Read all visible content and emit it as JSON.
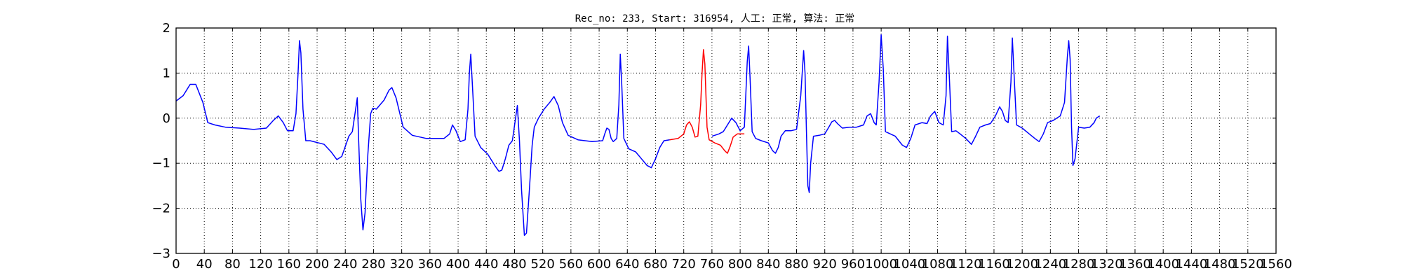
{
  "chart_data": {
    "type": "line",
    "title": "Rec_no: 233, Start: 316954, 人工: 正常, 算法: 正常",
    "xlabel": "",
    "ylabel": "",
    "xlim": [
      0,
      1560
    ],
    "ylim": [
      -3,
      2
    ],
    "grid": true,
    "y_ticks": [
      2,
      1,
      0,
      -1,
      -2,
      -3
    ],
    "y_tick_labels": [
      "2",
      "1",
      "0",
      "−1",
      "−2",
      "−3"
    ],
    "x_ticks": [
      0,
      40,
      80,
      120,
      160,
      200,
      240,
      280,
      320,
      360,
      400,
      440,
      480,
      520,
      560,
      600,
      640,
      680,
      720,
      760,
      800,
      840,
      880,
      920,
      960,
      1000,
      1040,
      1080,
      1120,
      1160,
      1200,
      1240,
      1280,
      1320,
      1360,
      1400,
      1440,
      1480,
      1520,
      1560
    ],
    "x_tick_labels": [
      "0",
      "40",
      "80",
      "120",
      "160",
      "200",
      "240",
      "280",
      "320",
      "360",
      "400",
      "440",
      "480",
      "520",
      "560",
      "600",
      "640",
      "680",
      "720",
      "760",
      "800",
      "840",
      "880",
      "920",
      "960",
      "1000",
      "1040",
      "1080",
      "1120",
      "1160",
      "1200",
      "1240",
      "1280",
      "1320",
      "1360",
      "1400",
      "1440",
      "1480",
      "1520",
      "1560"
    ],
    "series": [
      {
        "color": "#0000ff",
        "segments": [
          [
            [
              0,
              0.38
            ],
            [
              10,
              0.5
            ],
            [
              20,
              0.75
            ],
            [
              28,
              0.75
            ],
            [
              38,
              0.35
            ],
            [
              45,
              -0.1
            ],
            [
              55,
              -0.15
            ],
            [
              70,
              -0.2
            ],
            [
              90,
              -0.22
            ],
            [
              110,
              -0.25
            ],
            [
              128,
              -0.22
            ],
            [
              138,
              -0.05
            ],
            [
              145,
              0.05
            ],
            [
              152,
              -0.1
            ],
            [
              158,
              -0.28
            ],
            [
              166,
              -0.28
            ],
            [
              170,
              0.1
            ],
            [
              173,
              1.0
            ],
            [
              175,
              1.72
            ],
            [
              177,
              1.45
            ],
            [
              180,
              0.2
            ],
            [
              184,
              -0.5
            ],
            [
              190,
              -0.5
            ],
            [
              210,
              -0.58
            ],
            [
              220,
              -0.75
            ],
            [
              228,
              -0.92
            ],
            [
              235,
              -0.85
            ],
            [
              245,
              -0.4
            ],
            [
              250,
              -0.3
            ],
            [
              257,
              0.45
            ],
            [
              259,
              -0.5
            ],
            [
              262,
              -1.8
            ],
            [
              265,
              -2.48
            ],
            [
              268,
              -2.1
            ],
            [
              272,
              -0.8
            ],
            [
              276,
              0.1
            ],
            [
              279,
              0.22
            ],
            [
              284,
              0.2
            ],
            [
              295,
              0.4
            ],
            [
              302,
              0.62
            ],
            [
              306,
              0.68
            ],
            [
              312,
              0.45
            ],
            [
              322,
              -0.2
            ],
            [
              335,
              -0.38
            ],
            [
              355,
              -0.45
            ],
            [
              380,
              -0.45
            ],
            [
              388,
              -0.35
            ],
            [
              392,
              -0.15
            ],
            [
              397,
              -0.28
            ],
            [
              403,
              -0.52
            ],
            [
              410,
              -0.48
            ],
            [
              414,
              0.2
            ],
            [
              416,
              1.0
            ],
            [
              418,
              1.42
            ],
            [
              420,
              0.8
            ],
            [
              424,
              -0.4
            ],
            [
              432,
              -0.65
            ],
            [
              442,
              -0.8
            ],
            [
              452,
              -1.05
            ],
            [
              458,
              -1.18
            ],
            [
              462,
              -1.15
            ],
            [
              467,
              -0.9
            ],
            [
              472,
              -0.6
            ],
            [
              477,
              -0.5
            ],
            [
              481,
              -0.05
            ],
            [
              484,
              0.28
            ],
            [
              487,
              -0.5
            ],
            [
              490,
              -1.6
            ],
            [
              494,
              -2.6
            ],
            [
              497,
              -2.55
            ],
            [
              501,
              -1.6
            ],
            [
              505,
              -0.6
            ],
            [
              508,
              -0.2
            ],
            [
              514,
              0.0
            ],
            [
              522,
              0.2
            ],
            [
              530,
              0.35
            ],
            [
              536,
              0.48
            ],
            [
              542,
              0.28
            ],
            [
              548,
              -0.1
            ],
            [
              556,
              -0.38
            ],
            [
              570,
              -0.48
            ],
            [
              590,
              -0.52
            ],
            [
              605,
              -0.5
            ],
            [
              608,
              -0.35
            ],
            [
              611,
              -0.22
            ],
            [
              614,
              -0.25
            ],
            [
              617,
              -0.45
            ],
            [
              620,
              -0.52
            ],
            [
              625,
              -0.45
            ],
            [
              628,
              0.3
            ],
            [
              630,
              1.42
            ],
            [
              632,
              0.8
            ],
            [
              635,
              -0.45
            ],
            [
              642,
              -0.68
            ],
            [
              652,
              -0.75
            ],
            [
              660,
              -0.9
            ],
            [
              668,
              -1.05
            ],
            [
              674,
              -1.1
            ],
            [
              680,
              -0.9
            ],
            [
              686,
              -0.65
            ],
            [
              692,
              -0.5
            ],
            [
              700,
              -0.48
            ]
          ],
          [
            [
              760,
              -0.4
            ],
            [
              770,
              -0.35
            ],
            [
              776,
              -0.3
            ],
            [
              782,
              -0.15
            ],
            [
              788,
              0.0
            ],
            [
              794,
              -0.1
            ],
            [
              800,
              -0.28
            ],
            [
              806,
              -0.2
            ],
            [
              808,
              0.5
            ],
            [
              810,
              1.25
            ],
            [
              812,
              1.6
            ],
            [
              814,
              0.9
            ],
            [
              817,
              -0.3
            ],
            [
              822,
              -0.45
            ],
            [
              830,
              -0.5
            ],
            [
              840,
              -0.55
            ],
            [
              846,
              -0.72
            ],
            [
              850,
              -0.78
            ],
            [
              854,
              -0.65
            ],
            [
              858,
              -0.4
            ],
            [
              864,
              -0.28
            ],
            [
              872,
              -0.28
            ],
            [
              880,
              -0.25
            ],
            [
              886,
              0.5
            ],
            [
              890,
              1.5
            ],
            [
              892,
              1.0
            ],
            [
              894,
              -0.3
            ],
            [
              896,
              -1.5
            ],
            [
              898,
              -1.65
            ],
            [
              900,
              -1.0
            ],
            [
              904,
              -0.4
            ],
            [
              912,
              -0.38
            ],
            [
              920,
              -0.35
            ],
            [
              925,
              -0.22
            ],
            [
              930,
              -0.08
            ],
            [
              934,
              -0.05
            ],
            [
              938,
              -0.12
            ],
            [
              945,
              -0.22
            ],
            [
              955,
              -0.2
            ],
            [
              965,
              -0.2
            ],
            [
              975,
              -0.15
            ],
            [
              980,
              0.05
            ],
            [
              985,
              0.1
            ],
            [
              990,
              -0.1
            ],
            [
              993,
              -0.15
            ],
            [
              997,
              0.8
            ],
            [
              1000,
              1.85
            ],
            [
              1003,
              1.1
            ],
            [
              1006,
              -0.3
            ],
            [
              1013,
              -0.35
            ],
            [
              1020,
              -0.4
            ],
            [
              1030,
              -0.6
            ],
            [
              1036,
              -0.65
            ],
            [
              1042,
              -0.45
            ],
            [
              1048,
              -0.15
            ],
            [
              1058,
              -0.1
            ],
            [
              1065,
              -0.12
            ],
            [
              1070,
              0.05
            ],
            [
              1076,
              0.15
            ],
            [
              1082,
              -0.1
            ],
            [
              1088,
              -0.15
            ],
            [
              1092,
              0.5
            ],
            [
              1094,
              1.82
            ],
            [
              1097,
              0.8
            ],
            [
              1100,
              -0.3
            ],
            [
              1106,
              -0.28
            ],
            [
              1112,
              -0.35
            ],
            [
              1120,
              -0.45
            ],
            [
              1128,
              -0.58
            ],
            [
              1134,
              -0.4
            ],
            [
              1140,
              -0.2
            ],
            [
              1148,
              -0.15
            ],
            [
              1155,
              -0.12
            ],
            [
              1162,
              0.05
            ],
            [
              1168,
              0.25
            ],
            [
              1172,
              0.15
            ],
            [
              1176,
              -0.05
            ],
            [
              1180,
              -0.1
            ],
            [
              1184,
              0.8
            ],
            [
              1186,
              1.78
            ],
            [
              1189,
              0.8
            ],
            [
              1192,
              -0.15
            ],
            [
              1200,
              -0.22
            ],
            [
              1210,
              -0.35
            ],
            [
              1218,
              -0.45
            ],
            [
              1224,
              -0.52
            ],
            [
              1230,
              -0.35
            ],
            [
              1236,
              -0.1
            ],
            [
              1244,
              -0.05
            ],
            [
              1254,
              0.05
            ],
            [
              1260,
              0.35
            ],
            [
              1264,
              1.35
            ],
            [
              1266,
              1.72
            ],
            [
              1268,
              1.3
            ],
            [
              1270,
              -0.2
            ],
            [
              1272,
              -1.05
            ],
            [
              1275,
              -0.9
            ],
            [
              1280,
              -0.2
            ],
            [
              1288,
              -0.22
            ],
            [
              1296,
              -0.2
            ],
            [
              1302,
              -0.1
            ],
            [
              1305,
              0.0
            ],
            [
              1310,
              0.05
            ]
          ]
        ]
      },
      {
        "color": "#ff0000",
        "segments": [
          [
            [
              700,
              -0.48
            ],
            [
              712,
              -0.45
            ],
            [
              720,
              -0.35
            ],
            [
              724,
              -0.15
            ],
            [
              728,
              -0.08
            ],
            [
              732,
              -0.2
            ],
            [
              736,
              -0.42
            ],
            [
              740,
              -0.4
            ],
            [
              744,
              0.3
            ],
            [
              746,
              1.0
            ],
            [
              748,
              1.52
            ],
            [
              750,
              1.2
            ],
            [
              753,
              -0.2
            ],
            [
              756,
              -0.48
            ],
            [
              764,
              -0.55
            ],
            [
              772,
              -0.6
            ],
            [
              778,
              -0.72
            ],
            [
              782,
              -0.78
            ],
            [
              786,
              -0.62
            ],
            [
              790,
              -0.42
            ],
            [
              796,
              -0.35
            ],
            [
              806,
              -0.35
            ]
          ]
        ]
      }
    ]
  }
}
